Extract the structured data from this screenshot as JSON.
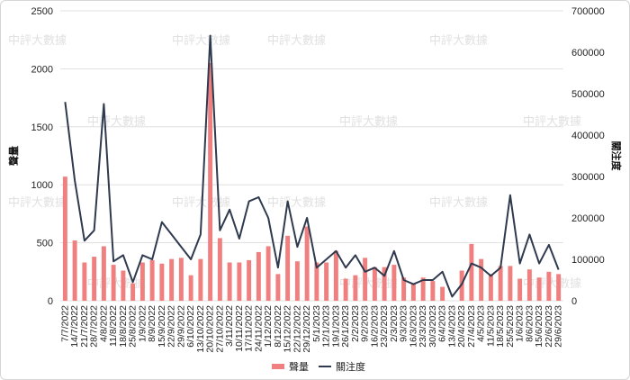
{
  "chart_data": {
    "type": "bar+line",
    "watermark": "中評大數據",
    "xlabel": "",
    "y_left": {
      "label": "聲量",
      "min": 0,
      "max": 2500,
      "ticks": [
        0,
        500,
        1000,
        1500,
        2000,
        2500
      ]
    },
    "y_right": {
      "label": "關注度",
      "min": 0,
      "max": 700000,
      "ticks": [
        0,
        100000,
        200000,
        300000,
        400000,
        500000,
        600000,
        700000
      ]
    },
    "legend": {
      "position": "bottom",
      "items": [
        {
          "name": "聲量",
          "kind": "bar",
          "color": "#f08080"
        },
        {
          "name": "關注度",
          "kind": "line",
          "color": "#2f3a4f"
        }
      ]
    },
    "categories": [
      "7/7/2022",
      "14/7/2022",
      "21/7/2022",
      "28/7/2022",
      "4/8/2022",
      "11/8/2022",
      "18/8/2022",
      "25/8/2022",
      "1/9/2022",
      "8/9/2022",
      "15/9/2022",
      "22/9/2022",
      "29/9/2022",
      "6/10/2022",
      "13/10/2022",
      "20/10/2022",
      "27/10/2022",
      "3/11/2022",
      "10/11/2022",
      "17/11/2022",
      "24/11/2022",
      "1/12/2022",
      "8/12/2022",
      "15/12/2022",
      "22/12/2022",
      "29/12/2022",
      "5/1/2023",
      "12/1/2023",
      "19/1/2023",
      "26/1/2023",
      "2/2/2023",
      "9/2/2023",
      "16/2/2023",
      "23/2/2023",
      "2/3/2023",
      "9/3/2023",
      "16/3/2023",
      "23/3/2023",
      "30/3/2023",
      "6/4/2023",
      "13/4/2023",
      "20/4/2023",
      "27/4/2023",
      "4/5/2023",
      "11/5/2023",
      "18/5/2023",
      "25/5/2023",
      "1/6/2023",
      "8/6/2023",
      "15/6/2023",
      "22/6/2023",
      "29/6/2023"
    ],
    "x_tick_labels": [
      "7/7/2022",
      "14/7/2022",
      "21/7/2022",
      "28/7/2022",
      "4/8/2022",
      "11/8/2022",
      "18/8/2022",
      "25/8/2022",
      "1/9/2022",
      "8/9/2022",
      "15/9/2022",
      "22/9/2022",
      "29/9/2022",
      "6/10/2022",
      "13/10/2022",
      "20/10/2022",
      "27/10/2022",
      "3/11/2022",
      "10/11/2022",
      "17/11/2022",
      "24/11/2022",
      "1/12/2022",
      "8/12/2022",
      "15/12/2022",
      "22/12/2022",
      "29/12/2022",
      "5/1/2023",
      "12/1/2023",
      "19/1/2023",
      "26/1/2023",
      "2/2/2023",
      "9/2/2023",
      "16/2/2023",
      "23/2/2023",
      "2/3/2023",
      "9/3/2023",
      "16/3/2023",
      "23/3/2023",
      "30/3/2023",
      "6/4/2023",
      "13/4/2023",
      "20/4/2023",
      "27/4/2023",
      "4/5/2023",
      "11/5/2023",
      "18/5/2023",
      "25/5/2023",
      "1/6/2023",
      "8/6/2023",
      "15/6/2023",
      "22/6/2023",
      "29/6/2023"
    ],
    "series": [
      {
        "name": "聲量",
        "type": "bar",
        "axis": "left",
        "color": "#f08080",
        "values": [
          1070,
          520,
          330,
          380,
          470,
          310,
          260,
          150,
          330,
          350,
          320,
          360,
          370,
          220,
          360,
          2050,
          540,
          330,
          330,
          350,
          420,
          470,
          230,
          560,
          340,
          640,
          330,
          330,
          430,
          190,
          220,
          370,
          290,
          290,
          310,
          200,
          150,
          200,
          170,
          120,
          0,
          260,
          490,
          360,
          230,
          300,
          300,
          190,
          270,
          200,
          250,
          230
        ]
      },
      {
        "name": "關注度",
        "type": "line",
        "axis": "right",
        "color": "#2f3a4f",
        "values": [
          480000,
          290000,
          145000,
          170000,
          475000,
          95000,
          110000,
          45000,
          110000,
          100000,
          190000,
          160000,
          130000,
          100000,
          160000,
          640000,
          170000,
          220000,
          150000,
          240000,
          250000,
          200000,
          80000,
          240000,
          130000,
          200000,
          80000,
          100000,
          120000,
          80000,
          110000,
          70000,
          80000,
          60000,
          120000,
          50000,
          40000,
          50000,
          50000,
          70000,
          10000,
          40000,
          90000,
          80000,
          60000,
          80000,
          255000,
          90000,
          160000,
          90000,
          135000,
          75000
        ]
      }
    ]
  }
}
